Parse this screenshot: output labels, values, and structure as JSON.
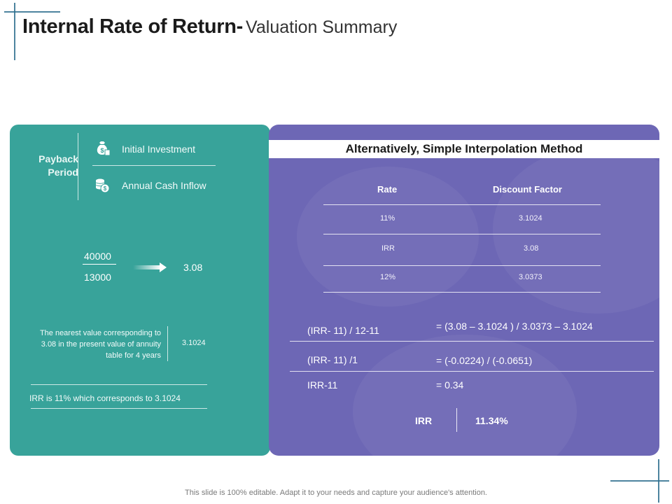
{
  "title": {
    "bold": "Internal Rate of Return-",
    "light": "Valuation Summary"
  },
  "left": {
    "payback_label": "Payback Period",
    "items": [
      {
        "label": "Initial Investment",
        "icon": "money-bag-icon"
      },
      {
        "label": "Annual Cash Inflow",
        "icon": "coins-icon"
      }
    ],
    "fraction": {
      "numerator": "40000",
      "denominator": "13000",
      "result": "3.08"
    },
    "note": "The nearest value corresponding to 3.08 in the present value of annuity table for 4 years",
    "note_value": "3.1024",
    "irr_statement": "IRR is 11% which corresponds to 3.1024"
  },
  "right": {
    "heading": "Alternatively, Simple Interpolation Method",
    "table": {
      "headers": [
        "Rate",
        "Discount Factor"
      ],
      "rows": [
        [
          "11%",
          "3.1024"
        ],
        [
          "IRR",
          "3.08"
        ],
        [
          "12%",
          "3.0373"
        ]
      ]
    },
    "calc": [
      {
        "lhs": "(IRR- 11) / 12-11",
        "rhs": "= (3.08 – 3.1024 ) / 3.0373 – 3.1024"
      },
      {
        "lhs": "(IRR- 11) /1",
        "rhs": "= (-0.0224) / (-0.0651)"
      },
      {
        "lhs": "IRR-11",
        "rhs": "= 0.34"
      }
    ],
    "result": {
      "label": "IRR",
      "value": "11.34%"
    }
  },
  "footer": "This slide is 100% editable. Adapt it to your needs and capture your audience's attention.",
  "colors": {
    "teal": "#38a39a",
    "purple": "#6d67b5",
    "accent": "#2e6e8e"
  }
}
